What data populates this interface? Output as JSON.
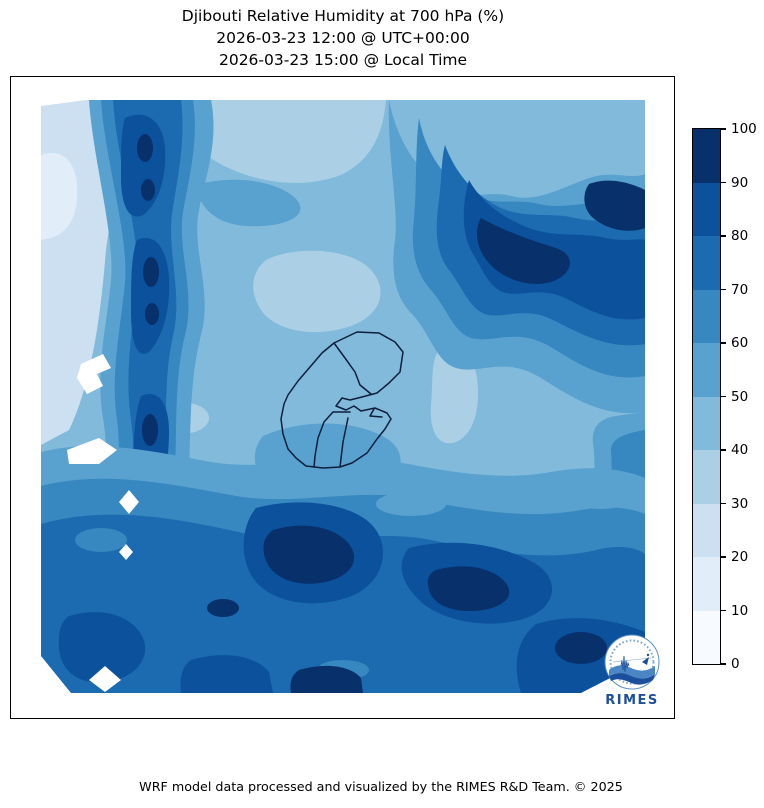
{
  "title": {
    "line1": "Djibouti Relative Humidity at 700 hPa (%)",
    "line2": "2026-03-23 12:00 @ UTC+00:00",
    "line3": "2026-03-23 15:00 @ Local Time"
  },
  "footer": {
    "credit": "WRF model data processed and visualized by the RIMES R&D Team. © 2025"
  },
  "logo": {
    "label": "RIMES"
  },
  "colorbar": {
    "unit": "%",
    "min": 0,
    "max": 100,
    "step": 10,
    "tick_labels_top_to_bottom": [
      "100",
      "90",
      "80",
      "70",
      "60",
      "50",
      "40",
      "30",
      "20",
      "10",
      "0"
    ],
    "palette_top_to_bottom": [
      "#08306b",
      "#0b519c",
      "#1c6bb0",
      "#3787c0",
      "#59a1cf",
      "#82badb",
      "#abd0e6",
      "#cde0f1",
      "#e1edf8",
      "#f7fbff"
    ]
  },
  "chart_data": {
    "type": "heatmap",
    "subtype": "filled-contour weather map (WRF model output)",
    "title": "Djibouti Relative Humidity at 700 hPa (%)",
    "valid_time_utc": "2026-03-23 12:00 @ UTC+00:00",
    "valid_time_local": "2026-03-23 15:00 @ Local Time",
    "variable": "Relative Humidity",
    "pressure_level": "700 hPa",
    "units": "%",
    "color_levels": [
      0,
      10,
      20,
      30,
      40,
      50,
      60,
      70,
      80,
      90,
      100
    ],
    "colormap": "Blues (light = dry, dark = humid)",
    "legend_position": "vertical colorbar at right",
    "grid": false,
    "overlay": "Djibouti national and regional admin boundaries outlined in dark navy near map center",
    "field_summary": [
      "Pale/dry pocket (roughly 10-30%) in the far northwest corner of the domain",
      "Narrow north-south ridge of very high humidity (80-100%) running down the western side",
      "Large very-humid mass (80-100%) across the northeast quadrant",
      "Moderate humidity (40-60%) over the central area surrounding Djibouti, with lighter 30-40% patches",
      "Broad high-humidity band (70-100%) covering the southern third of the domain",
      "Higher values (60-80%) along the eastern edge; small white masked gaps along the western ridge and bottom edge"
    ]
  }
}
